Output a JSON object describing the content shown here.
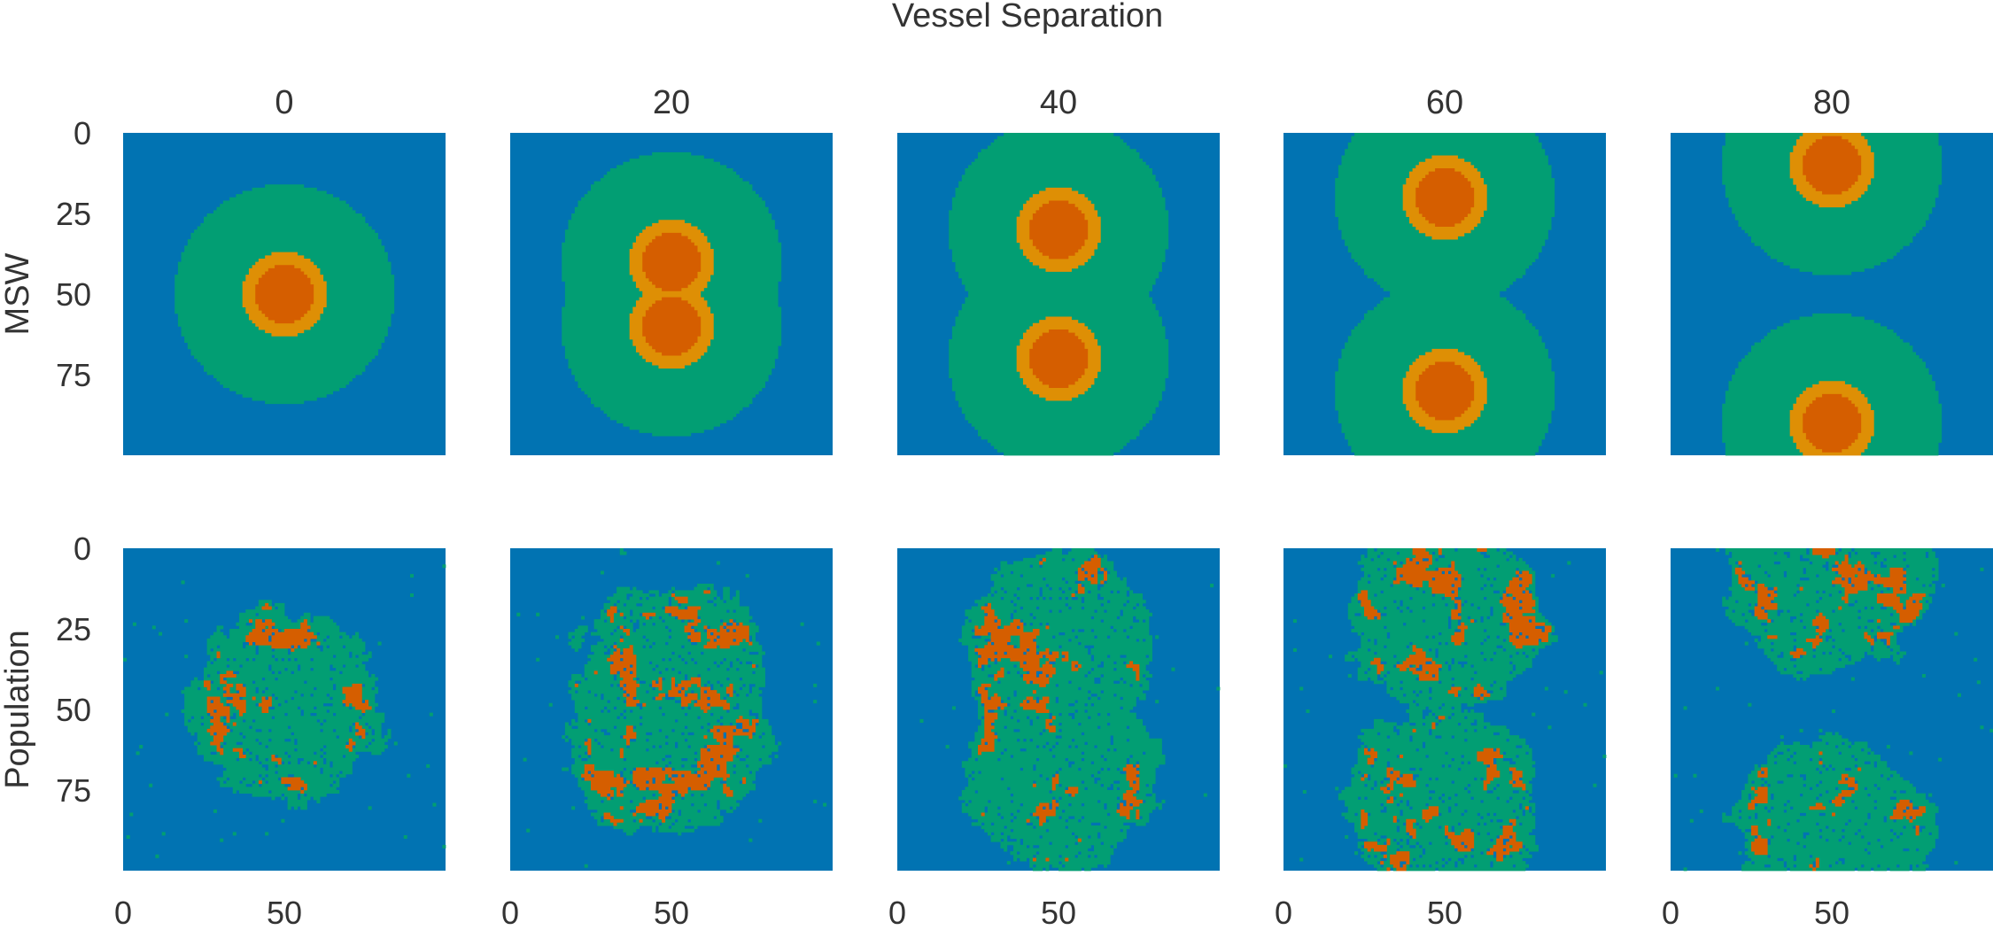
{
  "chart_data": {
    "type": "heatmap",
    "title": "Vessel Separation",
    "x_tick_labels": [
      "0",
      "50"
    ],
    "y_tick_labels": [
      "0",
      "25",
      "50",
      "75"
    ],
    "x_ticks": [
      0,
      50
    ],
    "y_ticks": [
      0,
      25,
      50,
      75
    ],
    "xlim": [
      0,
      100
    ],
    "ylim": [
      0,
      100
    ],
    "grid_size": 100,
    "colors": {
      "background": "#0173b2",
      "outer": "#029e73",
      "ring": "#de8f05",
      "core": "#d55e00"
    },
    "columns": [
      {
        "label": "0",
        "separation": 0,
        "vessel_rows": [
          50
        ]
      },
      {
        "label": "20",
        "separation": 20,
        "vessel_rows": [
          40,
          60
        ]
      },
      {
        "label": "40",
        "separation": 40,
        "vessel_rows": [
          30,
          70
        ]
      },
      {
        "label": "60",
        "separation": 60,
        "vessel_rows": [
          20,
          80
        ]
      },
      {
        "label": "80",
        "separation": 80,
        "vessel_rows": [
          10,
          90
        ]
      }
    ],
    "rows": [
      {
        "label": "MSW",
        "kind": "msw"
      },
      {
        "label": "Population",
        "kind": "population"
      }
    ],
    "vessel_column": 50,
    "msw_radii": {
      "core": 9,
      "ring": 13,
      "outer": 34
    }
  }
}
